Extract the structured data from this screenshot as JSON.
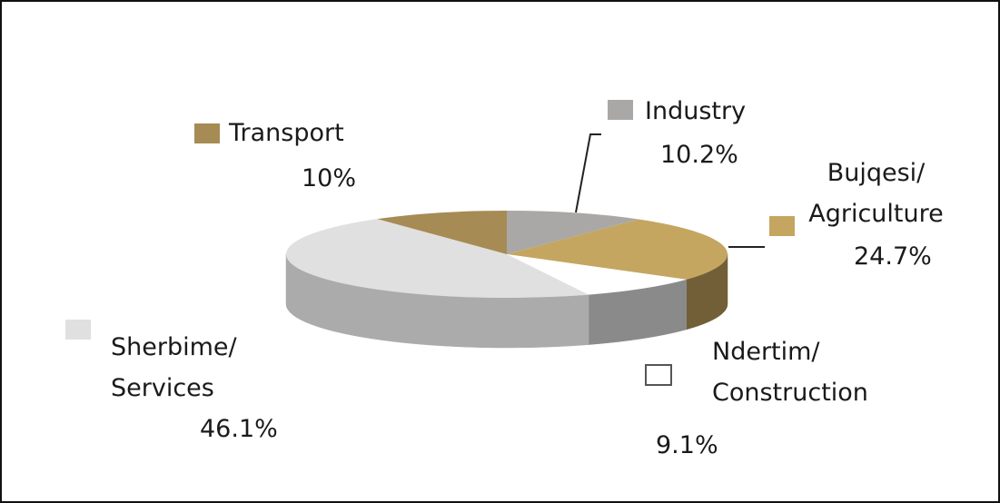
{
  "chart_data": {
    "type": "pie",
    "categories": [
      "Industry",
      "Bujqesi/ Agriculture",
      "Ndertim/ Construction",
      "Sherbime/ Services",
      "Transport"
    ],
    "values": [
      10.2,
      24.7,
      9.1,
      46.1,
      10
    ],
    "value_labels": [
      "10.2%",
      "24.7%",
      "9.1%",
      "46.1%",
      "10%"
    ],
    "colors": [
      "#a9a8a6",
      "#c5a660",
      "#ffffff",
      "#e0e0e0",
      "#a78b54"
    ],
    "side_colors": [
      "#7e7d7b",
      "#725f38",
      "#8a8a8a",
      "#ababab",
      "#7a6538"
    ]
  }
}
